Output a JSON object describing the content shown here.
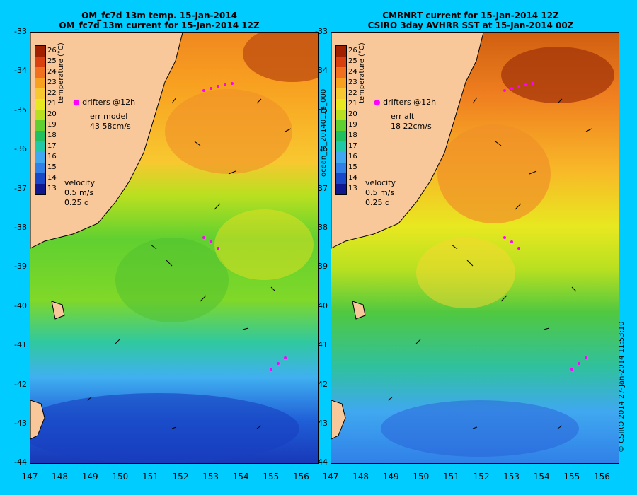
{
  "left_title": [
    "OM_fc7d 13m temp. 15-Jan-2014",
    "OM_fc7d 13m current for 15-Jan-2014 12Z"
  ],
  "right_title": [
    "CMRNRT current for 15-Jan-2014 12Z",
    "CSIRO 3day AVHRR SST at 15-Jan-2014 00Z"
  ],
  "y_ticks": [
    "-33",
    "-34",
    "-35",
    "-36",
    "-37",
    "-38",
    "-39",
    "-40",
    "-41",
    "-42",
    "-43",
    "-44"
  ],
  "x_ticks": [
    "147",
    "148",
    "149",
    "150",
    "151",
    "152",
    "153",
    "154",
    "155",
    "156"
  ],
  "colorbar": {
    "labels": [
      "26",
      "25",
      "24",
      "23",
      "22",
      "21",
      "20",
      "19",
      "18",
      "17",
      "16",
      "15",
      "14",
      "13"
    ],
    "title": "temperature (°C)",
    "colors": [
      "#a02000",
      "#d84010",
      "#f07020",
      "#f8a020",
      "#f8c830",
      "#e8e820",
      "#b8e020",
      "#60d030",
      "#20c060",
      "#20c8a8",
      "#40a8f0",
      "#3080e8",
      "#1848c8",
      "#101890"
    ]
  },
  "left_legend": {
    "drifters": "drifters @12h",
    "err_label": "err model",
    "err_value": "43 58cm/s",
    "velocity": "velocity",
    "speed": "0.5 m/s",
    "duration": "0.25 d"
  },
  "right_legend": {
    "drifters": "drifters @12h",
    "err_label": "err alt",
    "err_value": "18 22cm/s",
    "velocity": "velocity",
    "speed": "0.5 m/s",
    "duration": "0.25 d"
  },
  "side_label": "ocean_fc_20140115_000",
  "signature": "© CSIRO 2014   27-Jan-2014 11:53:10",
  "colors": {
    "background": "#00ccff",
    "land": "#f8c89a",
    "drifter": "#ff00ff"
  }
}
